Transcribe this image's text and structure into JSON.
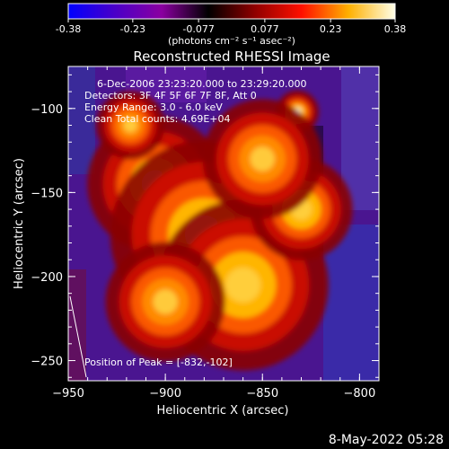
{
  "colorbar": {
    "tick_labels": [
      "-0.38",
      "-0.23",
      "-0.077",
      "0.077",
      "0.23",
      "0.38"
    ],
    "tick_values": [
      -0.38,
      -0.23,
      -0.077,
      0.077,
      0.23,
      0.38
    ],
    "range": [
      -0.38,
      0.38
    ],
    "unit_label": "(photons cm⁻² s⁻¹ asec⁻²)",
    "colors": [
      "#0000ff",
      "#4a00c8",
      "#8a00a0",
      "#000000",
      "#900000",
      "#ff1000",
      "#ffb000",
      "#ffffe8"
    ]
  },
  "chart_data": {
    "type": "heatmap",
    "title": "Reconstructed RHESSI Image",
    "xlabel": "Heliocentric X (arcsec)",
    "ylabel": "Heliocentric Y (arcsec)",
    "xlim": [
      -950,
      -790
    ],
    "ylim": [
      -262,
      -75
    ],
    "xticks": [
      -950,
      -900,
      -850,
      -800
    ],
    "yticks": [
      -100,
      -150,
      -200,
      -250
    ],
    "xtick_labels": [
      "−950",
      "−900",
      "−850",
      "−800"
    ],
    "ytick_labels": [
      "−100",
      "−150",
      "−200",
      "−250"
    ],
    "annotations": [
      "6-Dec-2006 23:23:20.000 to 23:29:20.000",
      "Detectors: 3F 4F 5F 6F 7F 8F, Att 0",
      "Energy Range: 3.0 - 6.0 keV",
      "Clean      Total counts: 4.69E+04"
    ],
    "peak_label": "Position of Peak = [-832,-102]",
    "peak": {
      "x": -832,
      "y": -102,
      "value": 0.38
    },
    "emission_blobs": [
      {
        "x": -832,
        "y": -102,
        "r": 5,
        "value": 0.38
      },
      {
        "x": -905,
        "y": -145,
        "r": 16,
        "value": 0.3
      },
      {
        "x": -880,
        "y": -175,
        "r": 22,
        "value": 0.32
      },
      {
        "x": -860,
        "y": -205,
        "r": 20,
        "value": 0.27
      },
      {
        "x": -830,
        "y": -160,
        "r": 12,
        "value": 0.24
      },
      {
        "x": -850,
        "y": -130,
        "r": 14,
        "value": 0.2
      },
      {
        "x": -900,
        "y": -215,
        "r": 14,
        "value": 0.22
      },
      {
        "x": -918,
        "y": -110,
        "r": 8,
        "value": 0.14
      }
    ]
  },
  "footer": {
    "timestamp": "8-May-2022 05:28"
  }
}
